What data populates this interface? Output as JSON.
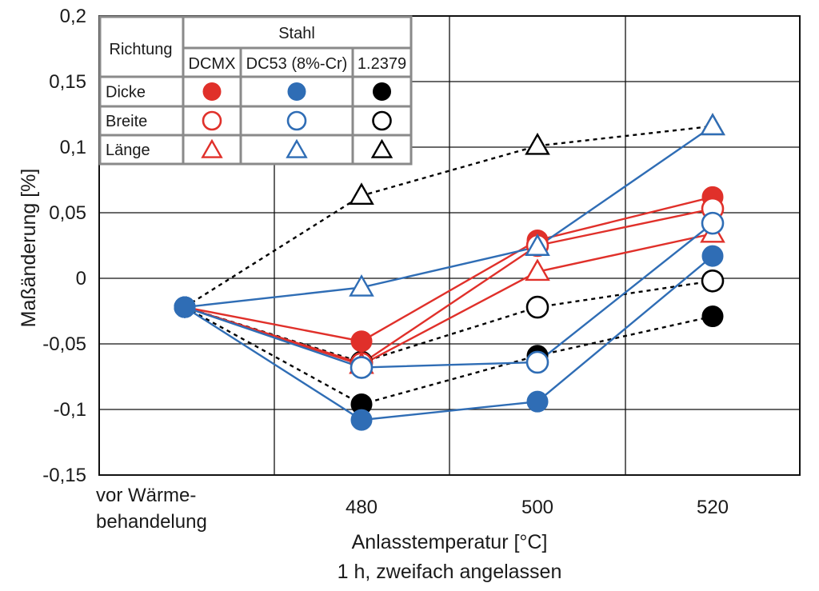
{
  "chart_data": {
    "type": "line",
    "categories": [
      "vor Wärme-\nbehandelung",
      "480",
      "500",
      "520"
    ],
    "x_tick_lines": [
      [
        "vor Wärme-",
        "behandelung"
      ],
      [
        "480"
      ],
      [
        "500"
      ],
      [
        "520"
      ]
    ],
    "xlabel": "Anlasstemperatur [°C]",
    "xlabel2": "1 h, zweifach angelassen",
    "ylabel": "Maßänderung [%]",
    "ylim": [
      -0.15,
      0.2
    ],
    "yticks": [
      -0.15,
      -0.1,
      -0.05,
      0,
      0.05,
      0.1,
      0.15,
      0.2
    ],
    "ytick_labels": [
      "-0,15",
      "-0,1",
      "-0,05",
      "0",
      "0,05",
      "0,1",
      "0,15",
      "0,2"
    ],
    "grid": true,
    "colors": {
      "DCMX": "#e0302a",
      "DC53": "#2f6db5",
      "1.2379": "#000000"
    },
    "series": [
      {
        "steel": "DCMX",
        "direction": "Dicke",
        "marker": "filled-circle",
        "line": "solid",
        "values": [
          -0.022,
          -0.048,
          0.029,
          0.062
        ]
      },
      {
        "steel": "DCMX",
        "direction": "Breite",
        "marker": "open-circle",
        "line": "solid",
        "values": [
          -0.022,
          -0.065,
          0.025,
          0.053
        ]
      },
      {
        "steel": "DCMX",
        "direction": "Länge",
        "marker": "open-triangle",
        "line": "solid",
        "values": [
          -0.022,
          -0.066,
          0.005,
          0.034
        ]
      },
      {
        "steel": "DC53",
        "direction": "Dicke",
        "marker": "filled-circle",
        "line": "solid",
        "values": [
          -0.022,
          -0.108,
          -0.094,
          0.017
        ]
      },
      {
        "steel": "DC53",
        "direction": "Breite",
        "marker": "open-circle",
        "line": "solid",
        "values": [
          -0.022,
          -0.068,
          -0.064,
          0.042
        ]
      },
      {
        "steel": "DC53",
        "direction": "Länge",
        "marker": "open-triangle",
        "line": "solid",
        "values": [
          -0.022,
          -0.007,
          0.024,
          0.116
        ]
      },
      {
        "steel": "1.2379",
        "direction": "Dicke",
        "marker": "filled-circle",
        "line": "dashed",
        "values": [
          -0.022,
          -0.096,
          -0.059,
          -0.029
        ]
      },
      {
        "steel": "1.2379",
        "direction": "Breite",
        "marker": "open-circle",
        "line": "dashed",
        "values": [
          -0.022,
          -0.064,
          -0.022,
          -0.002
        ]
      },
      {
        "steel": "1.2379",
        "direction": "Länge",
        "marker": "open-triangle",
        "line": "dashed",
        "values": [
          -0.022,
          0.063,
          0.101,
          0.116
        ]
      }
    ],
    "legend": {
      "placement": "top-left",
      "header_richtung": "Richtung",
      "header_stahl": "Stahl",
      "steels": [
        "DCMX",
        "DC53 (8%-Cr)",
        "1.2379"
      ],
      "rows": [
        "Dicke",
        "Breite",
        "Länge"
      ]
    }
  }
}
